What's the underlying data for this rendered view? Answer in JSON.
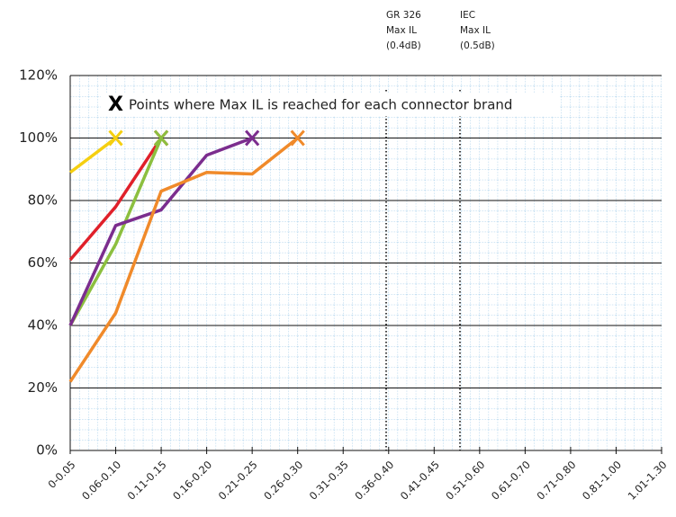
{
  "chart_data": {
    "type": "line",
    "categories": [
      "0-0.05",
      "0.06-0.10",
      "0.11-0.15",
      "0.16-0.20",
      "0.21-0.25",
      "0.26-0.30",
      "0.31-0.35",
      "0.36-0.40",
      "0.41-0.45",
      "0.51-0.60",
      "0.61-0.70",
      "0.71-0.80",
      "0.81-1.00",
      "1.01-1.30"
    ],
    "series": [
      {
        "color": "#f5cf10",
        "values": [
          89,
          100,
          null,
          null,
          null,
          null,
          null,
          null,
          null,
          null,
          null,
          null,
          null,
          null
        ]
      },
      {
        "color": "#e0202a",
        "values": [
          61,
          78,
          100,
          null,
          null,
          null,
          null,
          null,
          null,
          null,
          null,
          null,
          null,
          null
        ]
      },
      {
        "color": "#8cbf3f",
        "values": [
          40,
          66,
          100,
          null,
          null,
          null,
          null,
          null,
          null,
          null,
          null,
          null,
          null,
          null
        ]
      },
      {
        "color": "#7b2d8e",
        "values": [
          40,
          72,
          77,
          94.5,
          100,
          null,
          null,
          null,
          null,
          null,
          null,
          null,
          null,
          null
        ]
      },
      {
        "color": "#f08a2a",
        "values": [
          22,
          44,
          83,
          89,
          88.5,
          100,
          null,
          null,
          null,
          null,
          null,
          null,
          null,
          null
        ]
      }
    ],
    "ylim": [
      0,
      120
    ],
    "yticks": [
      {
        "value": 0,
        "label": "0%"
      },
      {
        "value": 20,
        "label": "20%"
      },
      {
        "value": 40,
        "label": "40%"
      },
      {
        "value": 60,
        "label": "60%"
      },
      {
        "value": 80,
        "label": "80%"
      },
      {
        "value": 100,
        "label": "100%"
      },
      {
        "value": 120,
        "label": "120%"
      }
    ],
    "grid": true,
    "annotations": {
      "marker": "X",
      "note": "Points where Max IL is reached for each connector brand",
      "gr326": [
        "GR 326",
        "Max IL",
        "(0.4dB)"
      ],
      "iec": [
        "IEC",
        "Max IL",
        "(0.5dB)"
      ]
    }
  }
}
